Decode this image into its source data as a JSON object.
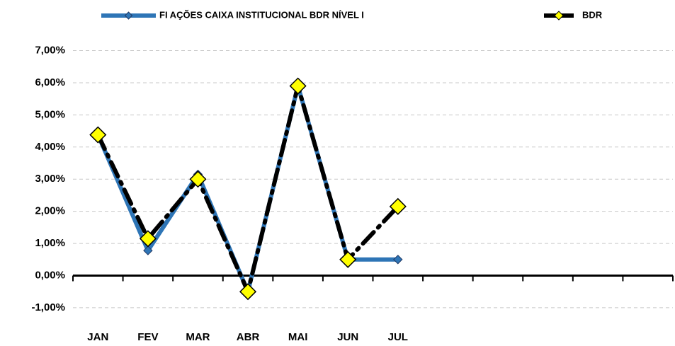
{
  "chart_data": {
    "type": "line",
    "categories": [
      "JAN",
      "FEV",
      "MAR",
      "ABR",
      "MAI",
      "JUN",
      "JUL",
      null,
      null,
      null,
      null,
      null
    ],
    "series": [
      {
        "name": "FI AÇÕES CAIXA INSTITUCIONAL BDR NÍVEL I",
        "color": "#2e75b6",
        "values": [
          4.38,
          0.78,
          3.15,
          -0.5,
          5.9,
          0.5,
          0.5,
          null,
          null,
          null,
          null,
          null
        ]
      },
      {
        "name": "BDR",
        "color": "#000000",
        "values": [
          4.38,
          1.15,
          3.0,
          -0.5,
          5.9,
          0.5,
          2.15,
          null,
          null,
          null,
          null,
          null
        ]
      }
    ],
    "ylim": [
      -1.2,
      7.1
    ],
    "yticks": [
      {
        "value": -1,
        "label": "-1,00%"
      },
      {
        "value": 0,
        "label": "0,00%"
      },
      {
        "value": 1,
        "label": "1,00%"
      },
      {
        "value": 2,
        "label": "2,00%"
      },
      {
        "value": 3,
        "label": "3,00%"
      },
      {
        "value": 4,
        "label": "4,00%"
      },
      {
        "value": 5,
        "label": "5,00%"
      },
      {
        "value": 6,
        "label": "6,00%"
      },
      {
        "value": 7,
        "label": "7,00%"
      }
    ],
    "grid": true,
    "legend": "top"
  }
}
